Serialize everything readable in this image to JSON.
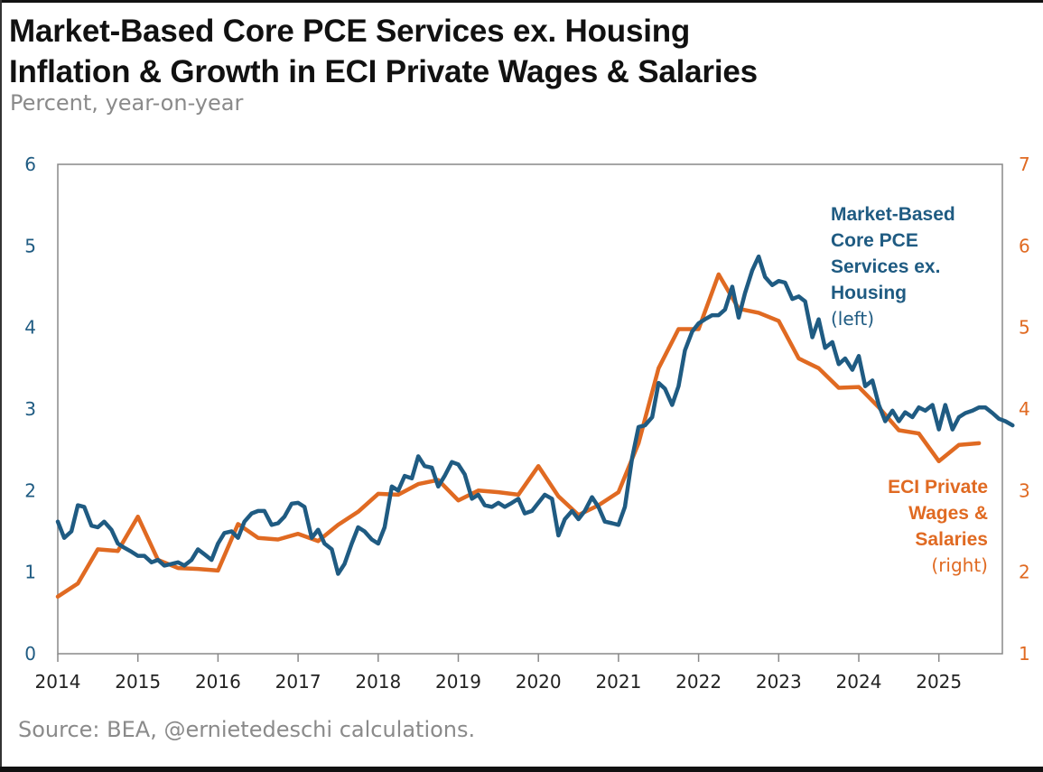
{
  "title": {
    "line1": "Market-Based Core PCE Services ex. Housing",
    "line2": "Inflation & Growth in ECI Private Wages & Salaries"
  },
  "subtitle": "Percent, year-on-year",
  "source": "Source: BEA, @ernietedeschi calculations.",
  "colors": {
    "pce": "#1f5b82",
    "eci": "#e06a22",
    "axis": "#888888"
  },
  "chart_data": {
    "type": "line",
    "x_axis": {
      "ticks": [
        "2014",
        "2015",
        "2016",
        "2017",
        "2018",
        "2019",
        "2020",
        "2021",
        "2022",
        "2023",
        "2024",
        "2025"
      ],
      "range": [
        2014.0,
        2025.9
      ]
    },
    "y_left": {
      "ticks": [
        "0",
        "1",
        "2",
        "3",
        "4",
        "5",
        "6"
      ],
      "range": [
        0,
        6
      ]
    },
    "y_right": {
      "ticks": [
        "1",
        "2",
        "3",
        "4",
        "5",
        "6",
        "7"
      ],
      "range": [
        1,
        7
      ]
    },
    "grid": false,
    "series": [
      {
        "key": "pce",
        "label_lines": [
          "Market-Based",
          "Core PCE",
          "Services ex.",
          "Housing"
        ],
        "label_note": "(left)",
        "axis": "left",
        "points": [
          [
            2014.0,
            1.62
          ],
          [
            2014.08,
            1.42
          ],
          [
            2014.17,
            1.5
          ],
          [
            2014.25,
            1.82
          ],
          [
            2014.33,
            1.8
          ],
          [
            2014.42,
            1.57
          ],
          [
            2014.5,
            1.55
          ],
          [
            2014.58,
            1.62
          ],
          [
            2014.67,
            1.52
          ],
          [
            2014.75,
            1.35
          ],
          [
            2014.83,
            1.3
          ],
          [
            2014.92,
            1.25
          ],
          [
            2015.0,
            1.2
          ],
          [
            2015.08,
            1.2
          ],
          [
            2015.17,
            1.12
          ],
          [
            2015.25,
            1.15
          ],
          [
            2015.33,
            1.08
          ],
          [
            2015.42,
            1.1
          ],
          [
            2015.5,
            1.12
          ],
          [
            2015.58,
            1.08
          ],
          [
            2015.67,
            1.15
          ],
          [
            2015.75,
            1.28
          ],
          [
            2015.83,
            1.22
          ],
          [
            2015.92,
            1.15
          ],
          [
            2016.0,
            1.35
          ],
          [
            2016.08,
            1.48
          ],
          [
            2016.17,
            1.5
          ],
          [
            2016.25,
            1.42
          ],
          [
            2016.33,
            1.62
          ],
          [
            2016.42,
            1.72
          ],
          [
            2016.5,
            1.75
          ],
          [
            2016.58,
            1.75
          ],
          [
            2016.67,
            1.58
          ],
          [
            2016.75,
            1.6
          ],
          [
            2016.83,
            1.68
          ],
          [
            2016.92,
            1.84
          ],
          [
            2017.0,
            1.85
          ],
          [
            2017.08,
            1.8
          ],
          [
            2017.17,
            1.42
          ],
          [
            2017.25,
            1.52
          ],
          [
            2017.33,
            1.35
          ],
          [
            2017.42,
            1.28
          ],
          [
            2017.5,
            0.98
          ],
          [
            2017.58,
            1.1
          ],
          [
            2017.67,
            1.35
          ],
          [
            2017.75,
            1.55
          ],
          [
            2017.83,
            1.5
          ],
          [
            2017.92,
            1.4
          ],
          [
            2018.0,
            1.35
          ],
          [
            2018.08,
            1.55
          ],
          [
            2018.17,
            2.05
          ],
          [
            2018.25,
            2.0
          ],
          [
            2018.33,
            2.18
          ],
          [
            2018.42,
            2.15
          ],
          [
            2018.5,
            2.42
          ],
          [
            2018.58,
            2.3
          ],
          [
            2018.67,
            2.28
          ],
          [
            2018.75,
            2.05
          ],
          [
            2018.83,
            2.18
          ],
          [
            2018.92,
            2.35
          ],
          [
            2019.0,
            2.32
          ],
          [
            2019.08,
            2.2
          ],
          [
            2019.17,
            1.9
          ],
          [
            2019.25,
            1.95
          ],
          [
            2019.33,
            1.82
          ],
          [
            2019.42,
            1.8
          ],
          [
            2019.5,
            1.85
          ],
          [
            2019.58,
            1.8
          ],
          [
            2019.67,
            1.85
          ],
          [
            2019.75,
            1.9
          ],
          [
            2019.83,
            1.72
          ],
          [
            2019.92,
            1.75
          ],
          [
            2020.0,
            1.85
          ],
          [
            2020.08,
            1.95
          ],
          [
            2020.17,
            1.9
          ],
          [
            2020.25,
            1.45
          ],
          [
            2020.33,
            1.65
          ],
          [
            2020.42,
            1.75
          ],
          [
            2020.5,
            1.65
          ],
          [
            2020.58,
            1.75
          ],
          [
            2020.67,
            1.92
          ],
          [
            2020.75,
            1.8
          ],
          [
            2020.83,
            1.62
          ],
          [
            2020.92,
            1.6
          ],
          [
            2021.0,
            1.58
          ],
          [
            2021.08,
            1.8
          ],
          [
            2021.17,
            2.4
          ],
          [
            2021.25,
            2.78
          ],
          [
            2021.33,
            2.8
          ],
          [
            2021.42,
            2.9
          ],
          [
            2021.5,
            3.32
          ],
          [
            2021.58,
            3.25
          ],
          [
            2021.67,
            3.05
          ],
          [
            2021.75,
            3.28
          ],
          [
            2021.83,
            3.72
          ],
          [
            2021.92,
            3.95
          ],
          [
            2022.0,
            4.05
          ],
          [
            2022.08,
            4.1
          ],
          [
            2022.17,
            4.15
          ],
          [
            2022.25,
            4.15
          ],
          [
            2022.33,
            4.22
          ],
          [
            2022.42,
            4.5
          ],
          [
            2022.5,
            4.12
          ],
          [
            2022.58,
            4.42
          ],
          [
            2022.67,
            4.7
          ],
          [
            2022.75,
            4.87
          ],
          [
            2022.83,
            4.62
          ],
          [
            2022.92,
            4.52
          ],
          [
            2023.0,
            4.57
          ],
          [
            2023.08,
            4.55
          ],
          [
            2023.17,
            4.35
          ],
          [
            2023.25,
            4.38
          ],
          [
            2023.33,
            4.32
          ],
          [
            2023.42,
            3.88
          ],
          [
            2023.5,
            4.1
          ],
          [
            2023.58,
            3.75
          ],
          [
            2023.67,
            3.82
          ],
          [
            2023.75,
            3.55
          ],
          [
            2023.83,
            3.62
          ],
          [
            2023.92,
            3.48
          ],
          [
            2024.0,
            3.65
          ],
          [
            2024.08,
            3.28
          ],
          [
            2024.17,
            3.35
          ],
          [
            2024.25,
            3.05
          ],
          [
            2024.33,
            2.85
          ],
          [
            2024.42,
            2.98
          ],
          [
            2024.5,
            2.85
          ],
          [
            2024.58,
            2.96
          ],
          [
            2024.67,
            2.9
          ],
          [
            2024.75,
            3.02
          ],
          [
            2024.83,
            2.98
          ],
          [
            2024.92,
            3.05
          ],
          [
            2025.0,
            2.75
          ],
          [
            2025.08,
            3.05
          ],
          [
            2025.17,
            2.75
          ],
          [
            2025.25,
            2.9
          ],
          [
            2025.33,
            2.95
          ],
          [
            2025.42,
            2.98
          ],
          [
            2025.5,
            3.02
          ],
          [
            2025.58,
            3.02
          ],
          [
            2025.67,
            2.95
          ],
          [
            2025.75,
            2.88
          ],
          [
            2025.83,
            2.85
          ],
          [
            2025.92,
            2.8
          ]
        ]
      },
      {
        "key": "eci",
        "label_lines": [
          "ECI Private",
          "Wages &",
          "Salaries"
        ],
        "label_note": "(right)",
        "axis": "right",
        "points": [
          [
            2014.0,
            1.7
          ],
          [
            2014.25,
            1.86
          ],
          [
            2014.5,
            2.28
          ],
          [
            2014.75,
            2.26
          ],
          [
            2015.0,
            2.68
          ],
          [
            2015.25,
            2.15
          ],
          [
            2015.5,
            2.05
          ],
          [
            2015.75,
            2.04
          ],
          [
            2016.0,
            2.02
          ],
          [
            2016.25,
            2.59
          ],
          [
            2016.5,
            2.42
          ],
          [
            2016.75,
            2.4
          ],
          [
            2017.0,
            2.47
          ],
          [
            2017.25,
            2.38
          ],
          [
            2017.5,
            2.58
          ],
          [
            2017.75,
            2.74
          ],
          [
            2018.0,
            2.96
          ],
          [
            2018.25,
            2.95
          ],
          [
            2018.5,
            3.08
          ],
          [
            2018.75,
            3.13
          ],
          [
            2019.0,
            2.88
          ],
          [
            2019.25,
            3.0
          ],
          [
            2019.5,
            2.98
          ],
          [
            2019.75,
            2.95
          ],
          [
            2020.0,
            3.3
          ],
          [
            2020.25,
            2.93
          ],
          [
            2020.5,
            2.7
          ],
          [
            2020.75,
            2.82
          ],
          [
            2021.0,
            2.98
          ],
          [
            2021.25,
            3.58
          ],
          [
            2021.5,
            4.5
          ],
          [
            2021.75,
            4.98
          ],
          [
            2022.0,
            4.98
          ],
          [
            2022.25,
            5.65
          ],
          [
            2022.5,
            5.23
          ],
          [
            2022.75,
            5.18
          ],
          [
            2023.0,
            5.08
          ],
          [
            2023.25,
            4.62
          ],
          [
            2023.5,
            4.5
          ],
          [
            2023.75,
            4.26
          ],
          [
            2024.0,
            4.27
          ],
          [
            2024.25,
            4.02
          ],
          [
            2024.5,
            3.74
          ],
          [
            2024.75,
            3.7
          ],
          [
            2025.0,
            3.36
          ],
          [
            2025.25,
            3.56
          ],
          [
            2025.5,
            3.58
          ]
        ]
      }
    ]
  }
}
